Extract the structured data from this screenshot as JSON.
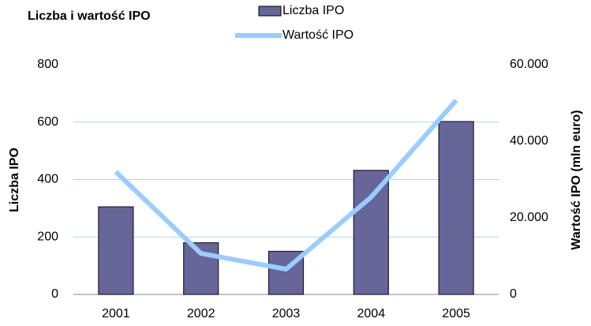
{
  "chart_data": {
    "type": "combo",
    "title": "Liczba i wartość IPO",
    "categories": [
      "2001",
      "2002",
      "2003",
      "2004",
      "2005"
    ],
    "series": [
      {
        "name": "Liczba IPO",
        "type": "bar",
        "color": "#666699",
        "values": [
          305,
          180,
          150,
          432,
          602
        ]
      },
      {
        "name": "Wartość IPO",
        "type": "line",
        "axis": "y2",
        "color": "#99ccff",
        "values": [
          32000,
          10700,
          6600,
          25400,
          50700
        ]
      }
    ],
    "ylabel": "Liczba IPO",
    "y2label": "Wartość IPO (mln euro)",
    "ylim": [
      0,
      800
    ],
    "yticks": [
      0,
      200,
      400,
      600,
      800
    ],
    "y2lim": [
      0,
      60000
    ],
    "y2ticks": [
      0,
      {
        "value": 20000,
        "label": "20.000"
      },
      {
        "value": 40000,
        "label": "40.000"
      },
      {
        "value": 60000,
        "label": "60.000"
      }
    ],
    "grid": true,
    "legend": "top"
  }
}
